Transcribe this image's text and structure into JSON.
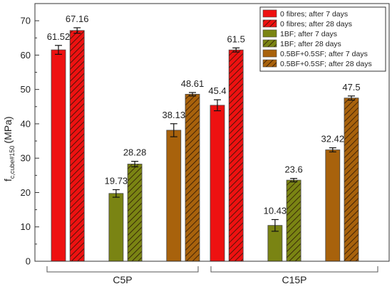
{
  "chart_data": {
    "type": "bar",
    "title": "",
    "ylabel": {
      "main": "f",
      "sub": "c,cube#150",
      "unit": "(MPa)"
    },
    "ylim": [
      0,
      75
    ],
    "yticks": [
      "0",
      "10",
      "20",
      "30",
      "40",
      "50",
      "60",
      "70"
    ],
    "groups": [
      "C5P",
      "C15P"
    ],
    "series": [
      {
        "name": "0 fibres; after 7 days",
        "color": "#ee1111",
        "hatch": false,
        "values": [
          61.52,
          45.4
        ],
        "labels": [
          "61.52",
          "45.4"
        ],
        "errors": [
          1.3,
          1.6
        ]
      },
      {
        "name": "0 fibres; after 28 days",
        "color": "#ee1111",
        "hatch": true,
        "values": [
          67.16,
          61.5
        ],
        "labels": [
          "67.16",
          "61.5"
        ],
        "errors": [
          0.8,
          0.6
        ]
      },
      {
        "name": "1BF; after 7 days",
        "color": "#7a8413",
        "hatch": false,
        "values": [
          19.73,
          10.43
        ],
        "labels": [
          "19.73",
          "10.43"
        ],
        "errors": [
          1.1,
          1.7
        ]
      },
      {
        "name": "1BF; after 28 days",
        "color": "#7a8413",
        "hatch": true,
        "values": [
          28.28,
          23.6
        ],
        "labels": [
          "28.28",
          "23.6"
        ],
        "errors": [
          0.8,
          0.5
        ]
      },
      {
        "name": "0.5BF+0.5SF; after 7 days",
        "color": "#a8620c",
        "hatch": false,
        "values": [
          38.13,
          32.42
        ],
        "labels": [
          "38.13",
          "32.42"
        ],
        "errors": [
          1.9,
          0.6
        ]
      },
      {
        "name": "0.5BF+0.5SF; after 28 days",
        "color": "#a8620c",
        "hatch": true,
        "values": [
          48.61,
          47.5
        ],
        "labels": [
          "48.61",
          "47.5"
        ],
        "errors": [
          0.5,
          0.6
        ]
      }
    ],
    "legend": "top-right",
    "grid": false
  }
}
